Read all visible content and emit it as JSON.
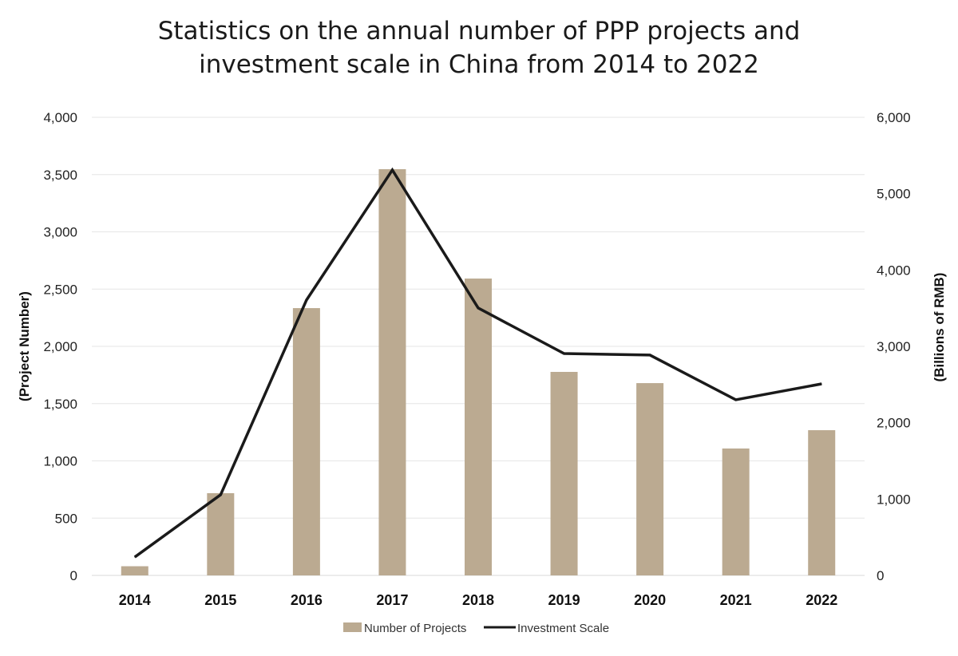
{
  "chart_data": {
    "type": "bar+line",
    "title_lines": [
      "Statistics on the annual number of PPP projects and",
      "investment scale in China from 2014 to 2022"
    ],
    "categories": [
      "2014",
      "2015",
      "2016",
      "2017",
      "2018",
      "2019",
      "2020",
      "2021",
      "2022"
    ],
    "series": [
      {
        "name": "Number of Projects",
        "type": "bar",
        "axis": "left",
        "color": "#bbaa91",
        "values": [
          80,
          718,
          2334,
          3547,
          2592,
          1777,
          1679,
          1108,
          1268
        ]
      },
      {
        "name": "Investment Scale",
        "type": "line",
        "axis": "right",
        "color": "#1a1a1a",
        "values": [
          240,
          1056,
          3606,
          5310,
          3502,
          2906,
          2886,
          2300,
          2509
        ]
      }
    ],
    "ylabel": "(Project Number)",
    "y2label": "(Billions of RMB)",
    "ylim": [
      0,
      4000
    ],
    "y2lim": [
      0,
      6000
    ],
    "yticks": [
      "0",
      "500",
      "1,000",
      "1,500",
      "2,000",
      "2,500",
      "3,000",
      "3,500",
      "4,000"
    ],
    "y2ticks": [
      "0",
      "1,000",
      "2,000",
      "3,000",
      "4,000",
      "5,000",
      "6,000"
    ],
    "grid": true,
    "legend": "bottom"
  }
}
